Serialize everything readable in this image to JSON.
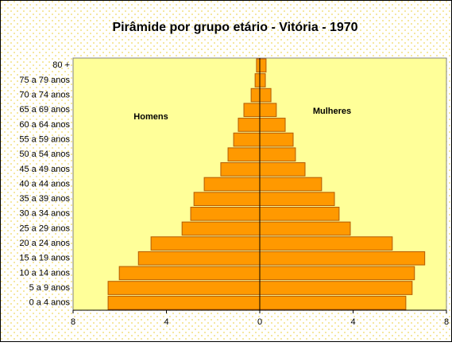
{
  "chart_data": {
    "type": "pyramid",
    "title": "Pirâmide por grupo etário - Vitória - 1970",
    "categories": [
      "80 +",
      "75 a 79 anos",
      "70 a 74 anos",
      "65 a 69 anos",
      "60 a 64 anos",
      "55 a 59 anos",
      "50 a 54 anos",
      "45 a 49 anos",
      "40 a 44 anos",
      "35 a 39 anos",
      "30 a 34 anos",
      "25 a 29 anos",
      "20 a 24 anos",
      "15 a 19 anos",
      "10 a 14 anos",
      "5 a 9 anos",
      "0 a 4 anos"
    ],
    "series": [
      {
        "name": "Homens",
        "color": "#ff9900",
        "values": [
          -0.14,
          -0.2,
          -0.37,
          -0.68,
          -0.92,
          -1.12,
          -1.36,
          -1.67,
          -2.38,
          -2.82,
          -2.96,
          -3.33,
          -4.66,
          -5.2,
          -6.02,
          -6.5,
          -6.5
        ]
      },
      {
        "name": "Mulheres",
        "color": "#ff9900",
        "values": [
          0.27,
          0.24,
          0.48,
          0.71,
          1.09,
          1.43,
          1.53,
          1.94,
          2.65,
          3.2,
          3.4,
          3.88,
          5.68,
          7.07,
          6.63,
          6.53,
          6.26
        ]
      }
    ],
    "xlim": [
      -8,
      8
    ],
    "xticks": [
      {
        "value": -8,
        "label": "8"
      },
      {
        "value": -4,
        "label": "4"
      },
      0,
      4,
      8
    ]
  }
}
